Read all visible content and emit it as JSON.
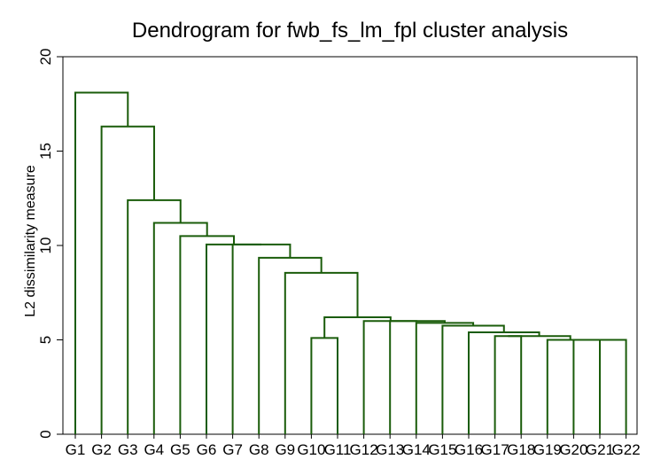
{
  "chart_data": {
    "type": "dendrogram",
    "title": "Dendrogram for fwb_fs_lm_fpl cluster analysis",
    "ylabel": "L2 dissimilarity measure",
    "xlabel": "",
    "ylim": [
      0,
      20
    ],
    "yticks": [
      0,
      5,
      10,
      15,
      20
    ],
    "grid": false,
    "legend": false,
    "line_color": "#1a5c0a",
    "leaves": [
      "G1",
      "G2",
      "G3",
      "G4",
      "G5",
      "G6",
      "G7",
      "G8",
      "G9",
      "G10",
      "G11",
      "G12",
      "G13",
      "G14",
      "G15",
      "G16",
      "G17",
      "G18",
      "G19",
      "G20",
      "G21",
      "G22"
    ],
    "merges": [
      {
        "left": "G21",
        "right": "G22",
        "height": 5.0
      },
      {
        "left": "G20",
        "right": "c0",
        "height": 5.0
      },
      {
        "left": "G19",
        "right": "c1",
        "height": 5.0
      },
      {
        "left": "G10",
        "right": "G11",
        "height": 5.1
      },
      {
        "left": "G17",
        "right": "G18",
        "height": 5.2
      },
      {
        "left": "c4",
        "right": "c2",
        "height": 5.2
      },
      {
        "left": "G16",
        "right": "c5",
        "height": 5.4
      },
      {
        "left": "G15",
        "right": "c6",
        "height": 5.75
      },
      {
        "left": "G14",
        "right": "c7",
        "height": 5.9
      },
      {
        "left": "G13",
        "right": "c8",
        "height": 6.0
      },
      {
        "left": "G12",
        "right": "c9",
        "height": 6.0
      },
      {
        "left": "c3",
        "right": "c10",
        "height": 6.2
      },
      {
        "left": "G9",
        "right": "c11",
        "height": 8.55
      },
      {
        "left": "G8",
        "right": "c12",
        "height": 9.35
      },
      {
        "left": "G7",
        "right": "c13",
        "height": 10.05
      },
      {
        "left": "G6",
        "right": "c14",
        "height": 10.05
      },
      {
        "left": "G5",
        "right": "c15",
        "height": 10.5
      },
      {
        "left": "G4",
        "right": "c16",
        "height": 11.2
      },
      {
        "left": "G3",
        "right": "c17",
        "height": 12.4
      },
      {
        "left": "G2",
        "right": "c18",
        "height": 16.3
      },
      {
        "left": "G1",
        "right": "c19",
        "height": 18.1
      }
    ]
  }
}
